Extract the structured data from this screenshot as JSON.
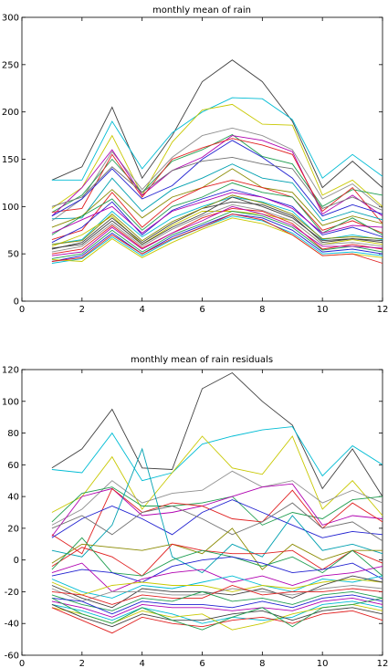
{
  "chart_data": [
    {
      "type": "line",
      "title": "monthly mean of rain",
      "xlabel": "",
      "ylabel": "",
      "xlim": [
        0,
        12
      ],
      "ylim": [
        0,
        300
      ],
      "xticks": [
        0,
        2,
        4,
        6,
        8,
        10,
        12
      ],
      "yticks": [
        0,
        50,
        100,
        150,
        200,
        250,
        300
      ],
      "x": [
        1,
        2,
        3,
        4,
        5,
        6,
        7,
        8,
        9,
        10,
        11,
        12
      ],
      "series": [
        {
          "color": "#404040",
          "values": [
            128,
            142,
            205,
            130,
            175,
            232,
            255,
            232,
            190,
            120,
            148,
            120
          ]
        },
        {
          "color": "#00bcd4",
          "values": [
            128,
            128,
            190,
            140,
            178,
            200,
            215,
            214,
            192,
            130,
            155,
            132
          ]
        },
        {
          "color": "#c8c800",
          "values": [
            98,
            120,
            175,
            112,
            168,
            202,
            208,
            187,
            186,
            112,
            128,
            100
          ]
        },
        {
          "color": "#8f8f8f",
          "values": [
            85,
            108,
            158,
            118,
            152,
            175,
            183,
            175,
            160,
            108,
            124,
            98
          ]
        },
        {
          "color": "#1f9e50",
          "values": [
            94,
            112,
            150,
            115,
            148,
            160,
            176,
            153,
            145,
            100,
            118,
            112
          ]
        },
        {
          "color": "#b000b0",
          "values": [
            90,
            120,
            160,
            112,
            138,
            152,
            175,
            170,
            158,
            92,
            112,
            90
          ]
        },
        {
          "color": "#e02020",
          "values": [
            94,
            98,
            155,
            110,
            150,
            162,
            172,
            165,
            155,
            95,
            120,
            82
          ]
        },
        {
          "color": "#2020d0",
          "values": [
            90,
            108,
            140,
            108,
            122,
            150,
            170,
            152,
            130,
            90,
            102,
            92
          ]
        },
        {
          "color": "#707070",
          "values": [
            100,
            110,
            142,
            115,
            138,
            148,
            152,
            145,
            140,
            98,
            110,
            96
          ]
        },
        {
          "color": "#00a0b0",
          "values": [
            87,
            88,
            130,
            95,
            118,
            130,
            145,
            130,
            125,
            85,
            95,
            86
          ]
        },
        {
          "color": "#8a8a00",
          "values": [
            78,
            90,
            118,
            88,
            110,
            120,
            140,
            120,
            115,
            80,
            90,
            82
          ]
        },
        {
          "color": "#e02020",
          "values": [
            65,
            75,
            115,
            78,
            105,
            120,
            128,
            120,
            110,
            75,
            85,
            72
          ]
        },
        {
          "color": "#1f9e50",
          "values": [
            70,
            90,
            108,
            75,
            100,
            110,
            125,
            115,
            110,
            72,
            88,
            70
          ]
        },
        {
          "color": "#2020d0",
          "values": [
            62,
            78,
            105,
            70,
            96,
            108,
            118,
            110,
            100,
            70,
            78,
            68
          ]
        },
        {
          "color": "#b000b0",
          "values": [
            72,
            86,
            100,
            72,
            95,
            105,
            115,
            110,
            98,
            72,
            80,
            78
          ]
        },
        {
          "color": "#00bcd4",
          "values": [
            60,
            65,
            95,
            68,
            88,
            100,
            110,
            105,
            95,
            65,
            70,
            65
          ]
        },
        {
          "color": "#c8c800",
          "values": [
            58,
            70,
            90,
            60,
            80,
            95,
            95,
            92,
            85,
            60,
            65,
            60
          ]
        },
        {
          "color": "#404040",
          "values": [
            55,
            62,
            88,
            62,
            82,
            98,
            105,
            102,
            90,
            62,
            66,
            62
          ]
        },
        {
          "color": "#8f8f8f",
          "values": [
            52,
            58,
            82,
            58,
            76,
            90,
            102,
            96,
            85,
            60,
            62,
            58
          ]
        },
        {
          "color": "#e02020",
          "values": [
            50,
            55,
            80,
            56,
            72,
            88,
            98,
            95,
            82,
            55,
            60,
            55
          ]
        },
        {
          "color": "#1f9e50",
          "values": [
            45,
            50,
            75,
            52,
            70,
            82,
            95,
            90,
            78,
            54,
            58,
            52
          ]
        },
        {
          "color": "#2020d0",
          "values": [
            42,
            48,
            72,
            50,
            68,
            80,
            92,
            88,
            75,
            52,
            55,
            50
          ]
        },
        {
          "color": "#b000b0",
          "values": [
            48,
            52,
            78,
            55,
            72,
            85,
            100,
            92,
            80,
            58,
            58,
            56
          ]
        },
        {
          "color": "#00bcd4",
          "values": [
            40,
            45,
            68,
            48,
            65,
            78,
            90,
            85,
            72,
            50,
            52,
            48
          ]
        },
        {
          "color": "#c8c800",
          "values": [
            44,
            42,
            66,
            46,
            62,
            76,
            88,
            82,
            70,
            48,
            50,
            46
          ]
        },
        {
          "color": "#404040",
          "values": [
            56,
            60,
            85,
            60,
            78,
            92,
            110,
            100,
            88,
            64,
            66,
            64
          ]
        },
        {
          "color": "#e02020",
          "values": [
            42,
            46,
            70,
            50,
            66,
            78,
            92,
            86,
            70,
            48,
            50,
            40
          ]
        },
        {
          "color": "#8a8a00",
          "values": [
            60,
            64,
            92,
            64,
            84,
            98,
            112,
            104,
            92,
            66,
            68,
            66
          ]
        }
      ]
    },
    {
      "type": "line",
      "title": "monthly mean of rain residuals",
      "xlabel": "",
      "ylabel": "",
      "xlim": [
        0,
        12
      ],
      "ylim": [
        -60,
        120
      ],
      "xticks": [
        0,
        2,
        4,
        6,
        8,
        10,
        12
      ],
      "yticks": [
        -60,
        -40,
        -20,
        0,
        20,
        40,
        60,
        80,
        100,
        120
      ],
      "x": [
        1,
        2,
        3,
        4,
        5,
        6,
        7,
        8,
        9,
        10,
        11,
        12
      ],
      "series": [
        {
          "color": "#404040",
          "values": [
            58,
            70,
            95,
            58,
            57,
            108,
            118,
            100,
            85,
            45,
            70,
            40
          ]
        },
        {
          "color": "#00bcd4",
          "values": [
            57,
            55,
            80,
            50,
            55,
            73,
            78,
            82,
            84,
            53,
            72,
            60
          ]
        },
        {
          "color": "#c8c800",
          "values": [
            30,
            40,
            65,
            32,
            55,
            78,
            58,
            54,
            78,
            32,
            50,
            28
          ]
        },
        {
          "color": "#8f8f8f",
          "values": [
            22,
            32,
            50,
            36,
            42,
            44,
            56,
            46,
            50,
            36,
            44,
            36
          ]
        },
        {
          "color": "#1f9e50",
          "values": [
            24,
            42,
            46,
            34,
            34,
            36,
            40,
            22,
            30,
            26,
            38,
            40
          ]
        },
        {
          "color": "#b000b0",
          "values": [
            15,
            40,
            45,
            28,
            30,
            34,
            40,
            46,
            48,
            22,
            28,
            26
          ]
        },
        {
          "color": "#e02020",
          "values": [
            16,
            4,
            45,
            30,
            36,
            34,
            26,
            24,
            44,
            20,
            36,
            24
          ]
        },
        {
          "color": "#2020d0",
          "values": [
            14,
            26,
            34,
            26,
            16,
            30,
            38,
            30,
            22,
            14,
            18,
            16
          ]
        },
        {
          "color": "#707070",
          "values": [
            20,
            28,
            16,
            30,
            34,
            26,
            16,
            24,
            36,
            20,
            24,
            12
          ]
        },
        {
          "color": "#00a0b0",
          "values": [
            6,
            2,
            22,
            70,
            2,
            -8,
            10,
            2,
            28,
            6,
            10,
            4
          ]
        },
        {
          "color": "#8a8a00",
          "values": [
            -2,
            10,
            8,
            6,
            10,
            4,
            20,
            -6,
            10,
            0,
            6,
            6
          ]
        },
        {
          "color": "#e02020",
          "values": [
            -4,
            8,
            2,
            -10,
            10,
            6,
            4,
            4,
            6,
            -6,
            6,
            -2
          ]
        },
        {
          "color": "#1f9e50",
          "values": [
            -6,
            14,
            -8,
            -10,
            0,
            6,
            2,
            -4,
            2,
            -8,
            6,
            -10
          ]
        },
        {
          "color": "#2020d0",
          "values": [
            -10,
            -6,
            -8,
            -14,
            -4,
            0,
            2,
            -2,
            -8,
            -6,
            -2,
            -12
          ]
        },
        {
          "color": "#b000b0",
          "values": [
            -8,
            -2,
            -20,
            -12,
            -8,
            -6,
            -14,
            -10,
            -16,
            -10,
            -8,
            -4
          ]
        },
        {
          "color": "#00bcd4",
          "values": [
            -12,
            -20,
            -24,
            -16,
            -18,
            -14,
            -10,
            -16,
            -20,
            -12,
            -14,
            -10
          ]
        },
        {
          "color": "#c8c800",
          "values": [
            -14,
            -22,
            -16,
            -14,
            -16,
            -16,
            -20,
            -16,
            -18,
            -14,
            -12,
            -14
          ]
        },
        {
          "color": "#404040",
          "values": [
            -16,
            -24,
            -30,
            -18,
            -20,
            -20,
            -22,
            -18,
            -24,
            -16,
            -10,
            -14
          ]
        },
        {
          "color": "#8f8f8f",
          "values": [
            -18,
            -26,
            -20,
            -20,
            -22,
            -22,
            -18,
            -20,
            -22,
            -18,
            -16,
            -18
          ]
        },
        {
          "color": "#e02020",
          "values": [
            -20,
            -22,
            -28,
            -22,
            -24,
            -24,
            -16,
            -22,
            -20,
            -20,
            -18,
            -20
          ]
        },
        {
          "color": "#1f9e50",
          "values": [
            -22,
            -28,
            -32,
            -24,
            -26,
            -20,
            -26,
            -24,
            -28,
            -22,
            -20,
            -24
          ]
        },
        {
          "color": "#2020d0",
          "values": [
            -24,
            -26,
            -34,
            -26,
            -28,
            -28,
            -30,
            -26,
            -30,
            -24,
            -22,
            -26
          ]
        },
        {
          "color": "#b000b0",
          "values": [
            -26,
            -30,
            -36,
            -28,
            -30,
            -30,
            -32,
            -30,
            -32,
            -26,
            -24,
            -28
          ]
        },
        {
          "color": "#00bcd4",
          "values": [
            -28,
            -32,
            -38,
            -30,
            -34,
            -40,
            -36,
            -38,
            -36,
            -28,
            -26,
            -30
          ]
        },
        {
          "color": "#c8c800",
          "values": [
            -30,
            -34,
            -40,
            -32,
            -36,
            -34,
            -44,
            -40,
            -34,
            -30,
            -28,
            -32
          ]
        },
        {
          "color": "#404040",
          "values": [
            -28,
            -36,
            -42,
            -34,
            -38,
            -38,
            -34,
            -32,
            -38,
            -32,
            -30,
            -34
          ]
        },
        {
          "color": "#e02020",
          "values": [
            -30,
            -38,
            -46,
            -36,
            -40,
            -42,
            -38,
            -36,
            -40,
            -34,
            -32,
            -38
          ]
        },
        {
          "color": "#1f9e50",
          "values": [
            -24,
            -34,
            -40,
            -30,
            -38,
            -44,
            -36,
            -30,
            -42,
            -30,
            -28,
            -24
          ]
        }
      ]
    }
  ]
}
